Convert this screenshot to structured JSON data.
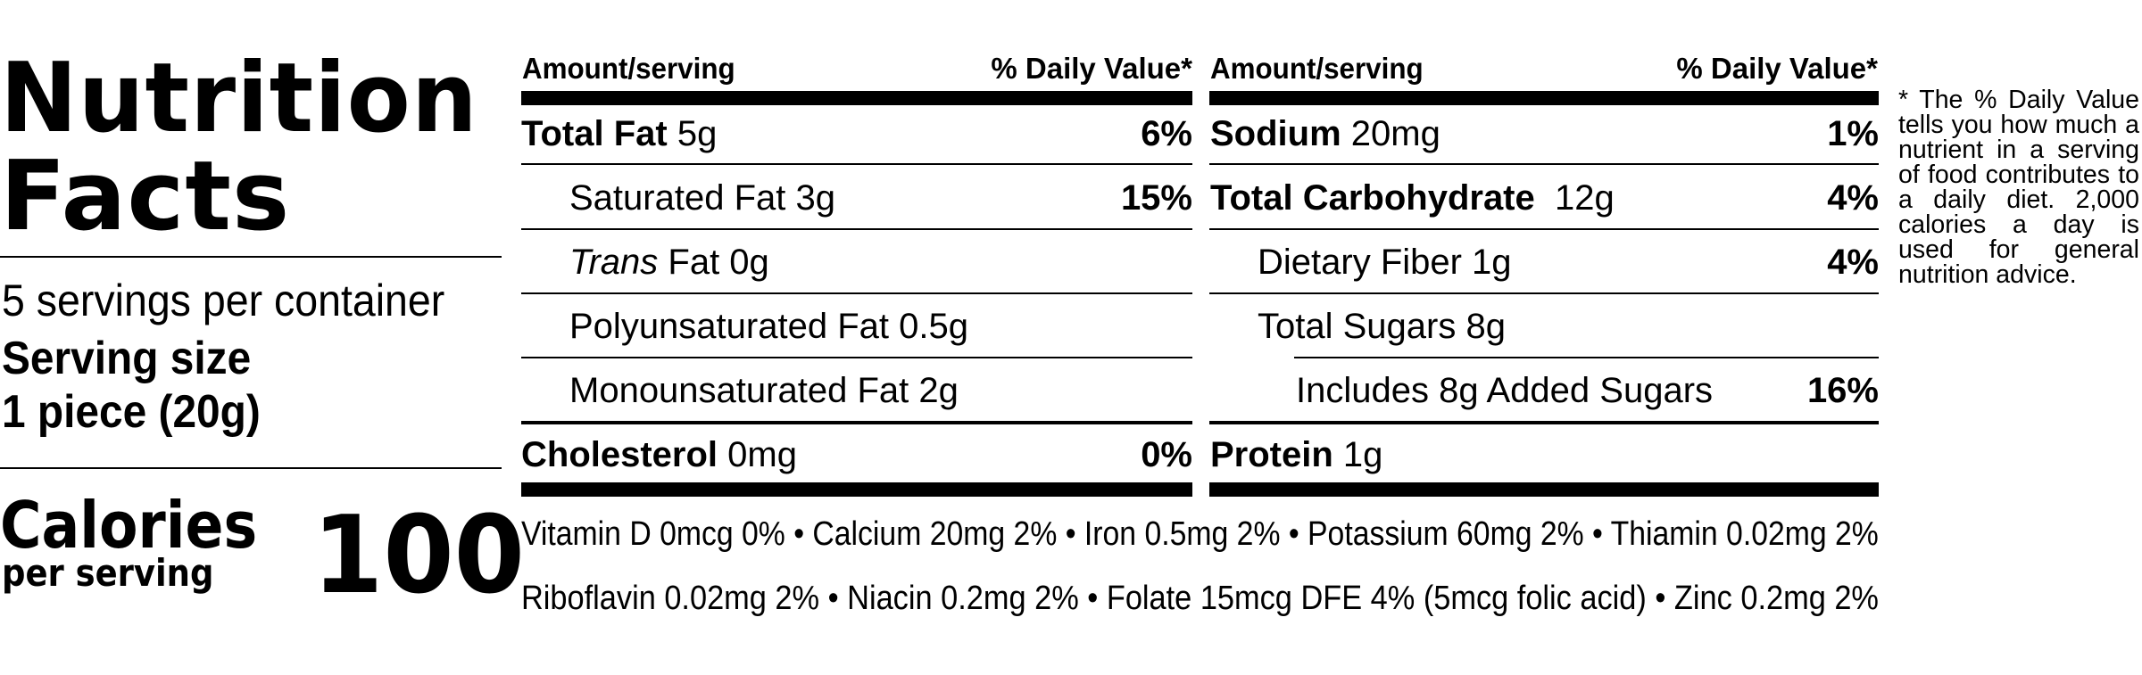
{
  "label": {
    "title_line1": "Nutrition",
    "title_line2": "Facts",
    "servings_per_container": "5 servings per container",
    "serving_size_label": "Serving size",
    "serving_size_value": "1 piece (20g)",
    "calories_label": "Calories",
    "calories_sublabel": "per serving",
    "calories_value": "100"
  },
  "header": {
    "amount_serving": "Amount/serving",
    "daily_value": "% Daily Value*"
  },
  "left_column": [
    {
      "bold": "Total Fat",
      "italic": "",
      "rest": " 5g",
      "pct": "6%"
    },
    {
      "bold": "",
      "italic": "",
      "rest": "Saturated Fat 3g",
      "pct": "15%"
    },
    {
      "bold": "",
      "italic": "Trans",
      "rest": " Fat 0g",
      "pct": ""
    },
    {
      "bold": "",
      "italic": "",
      "rest": "Polyunsaturated Fat 0.5g",
      "pct": ""
    },
    {
      "bold": "",
      "italic": "",
      "rest": "Monounsaturated Fat 2g",
      "pct": ""
    },
    {
      "bold": "Cholesterol",
      "italic": "",
      "rest": " 0mg",
      "pct": "0%"
    }
  ],
  "right_column": [
    {
      "bold": "Sodium",
      "rest": " 20mg",
      "pct": "1%"
    },
    {
      "bold": "Total Carbohydrate",
      "rest": "  12g",
      "pct": "4%"
    },
    {
      "bold": "",
      "rest": "Dietary Fiber 1g",
      "pct": "4%"
    },
    {
      "bold": "",
      "rest": "Total Sugars 8g",
      "pct": ""
    },
    {
      "bold": "",
      "rest": "Includes 8g Added Sugars",
      "pct": "16%"
    },
    {
      "bold": "Protein",
      "rest": " 1g",
      "pct": ""
    }
  ],
  "vitamins": {
    "line1": "Vitamin D 0mcg 0% • Calcium 20mg 2% • Iron 0.5mg 2% • Potassium 60mg 2% • Thiamin 0.02mg 2%",
    "line2": "Riboflavin 0.02mg 2% • Niacin 0.2mg 2% • Folate 15mcg DFE 4% (5mcg folic acid) • Zinc 0.2mg 2%"
  },
  "footnote": "* The % Daily Value tells you how much a nutrient in a serving of food contributes to a daily diet. 2,000 calories a day is used for general nutrition advice."
}
